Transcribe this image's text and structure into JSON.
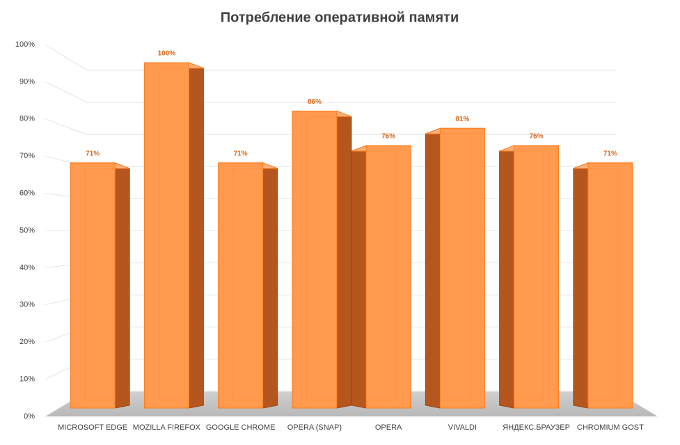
{
  "chart_data": {
    "type": "bar3d",
    "title": "Потребление оперативной памяти",
    "categories": [
      "MICROSOFT EDGE",
      "MOZILLA FIREFOX",
      "GOOGLE CHROME",
      "OPERA (SNAP)",
      "OPERA",
      "VIVALDI",
      "ЯНДЕКС.БРАУЗЕР",
      "CHROMIUM GOST"
    ],
    "values": [
      71,
      100,
      71,
      86,
      76,
      81,
      76,
      71
    ],
    "value_labels": [
      "71%",
      "100%",
      "71%",
      "86%",
      "76%",
      "81%",
      "76%",
      "71%"
    ],
    "color": "#ff9a4f",
    "ylim": [
      0,
      100
    ],
    "yticks": [
      {
        "value": 0,
        "label": "0%"
      },
      {
        "value": 10,
        "label": "10%"
      },
      {
        "value": 20,
        "label": "20%"
      },
      {
        "value": 30,
        "label": "30%"
      },
      {
        "value": 40,
        "label": "40%"
      },
      {
        "value": 50,
        "label": "50%"
      },
      {
        "value": 60,
        "label": "60%"
      },
      {
        "value": 70,
        "label": "70%"
      },
      {
        "value": 80,
        "label": "80%"
      },
      {
        "value": 90,
        "label": "90%"
      },
      {
        "value": 100,
        "label": "100%"
      }
    ],
    "grid": true
  }
}
